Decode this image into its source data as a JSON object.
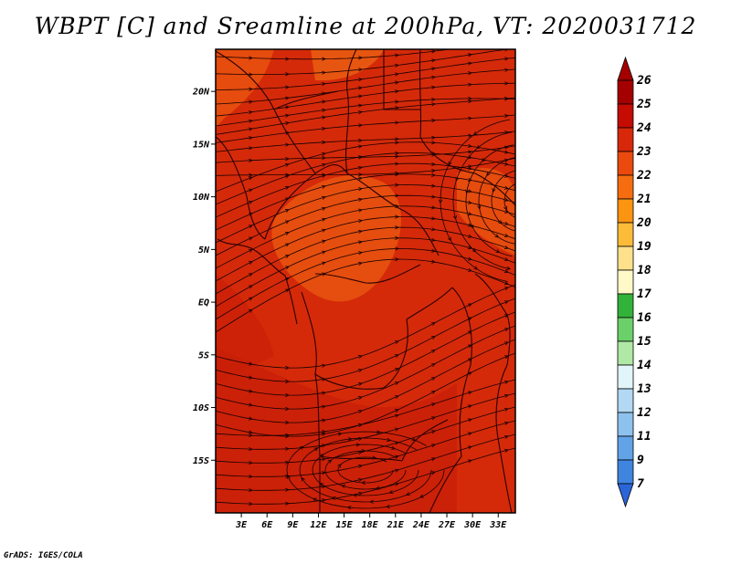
{
  "title": "WBPT [C] and Sreamline at 200hPa, VT: 2020031712",
  "footer": "GrADS: IGES/COLA",
  "map": {
    "region": "East/Central Africa",
    "lon_range": [
      0,
      35
    ],
    "lat_range": [
      -20,
      24
    ],
    "lon_ticks": [
      {
        "lon": 3,
        "label": "3E"
      },
      {
        "lon": 6,
        "label": "6E"
      },
      {
        "lon": 9,
        "label": "9E"
      },
      {
        "lon": 12,
        "label": "12E"
      },
      {
        "lon": 15,
        "label": "15E"
      },
      {
        "lon": 18,
        "label": "18E"
      },
      {
        "lon": 21,
        "label": "21E"
      },
      {
        "lon": 24,
        "label": "24E"
      },
      {
        "lon": 27,
        "label": "27E"
      },
      {
        "lon": 30,
        "label": "30E"
      },
      {
        "lon": 33,
        "label": "33E"
      }
    ],
    "lat_ticks": [
      {
        "lat": 20,
        "label": "20N"
      },
      {
        "lat": 15,
        "label": "15N"
      },
      {
        "lat": 10,
        "label": "10N"
      },
      {
        "lat": 5,
        "label": "5N"
      },
      {
        "lat": 0,
        "label": "EQ"
      },
      {
        "lat": -5,
        "label": "5S"
      },
      {
        "lat": -10,
        "label": "10S"
      },
      {
        "lat": -15,
        "label": "15S"
      }
    ],
    "colors": {
      "field_base": "#d42a0a",
      "field_warm": "#c81e07",
      "field_cool": "#e8550f",
      "field_coolest": "#ef6a14",
      "streamline": "#1a0000",
      "border": "#2a0000"
    }
  },
  "colorbar": {
    "levels": [
      {
        "label": "26",
        "color": "#a50000"
      },
      {
        "label": "25",
        "color": "#c40c02"
      },
      {
        "label": "24",
        "color": "#d8280a"
      },
      {
        "label": "23",
        "color": "#ea4a0e"
      },
      {
        "label": "22",
        "color": "#f56d0f"
      },
      {
        "label": "21",
        "color": "#fb9410"
      },
      {
        "label": "20",
        "color": "#fdbb3a"
      },
      {
        "label": "19",
        "color": "#fee18a"
      },
      {
        "label": "18",
        "color": "#fff8c7"
      },
      {
        "label": "17",
        "color": "#33b23a"
      },
      {
        "label": "16",
        "color": "#6cd06a"
      },
      {
        "label": "15",
        "color": "#b0e8a6"
      },
      {
        "label": "14",
        "color": "#e2f5f8"
      },
      {
        "label": "13",
        "color": "#b2d8f3"
      },
      {
        "label": "12",
        "color": "#8ec2ee"
      },
      {
        "label": "11",
        "color": "#62a3e8"
      },
      {
        "label": "9",
        "color": "#3f85e0"
      },
      {
        "label": "7",
        "color": "#2166d6"
      }
    ],
    "bottom_color": "#2a66d8"
  }
}
